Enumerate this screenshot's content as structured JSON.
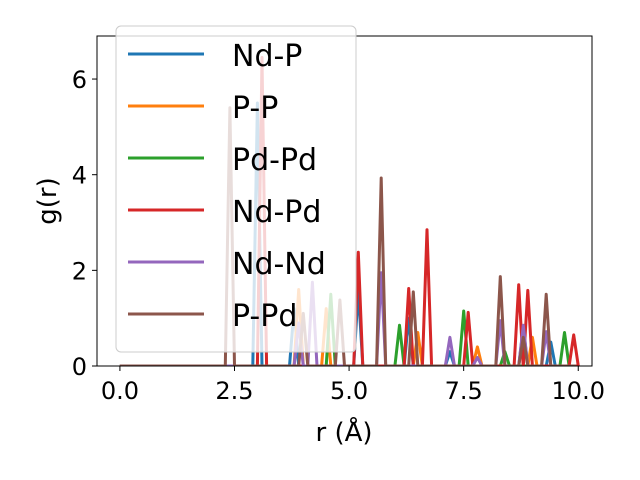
{
  "chart_data": {
    "type": "line",
    "xlabel": "r (Å)",
    "ylabel": "g(r)",
    "xlim": [
      -0.5,
      10.3
    ],
    "ylim": [
      0,
      6.9
    ],
    "xticks": [
      0.0,
      2.5,
      5.0,
      7.5,
      10.0
    ],
    "xtick_labels": [
      "0.0",
      "2.5",
      "5.0",
      "7.5",
      "10.0"
    ],
    "yticks": [
      0,
      2,
      4,
      6
    ],
    "ytick_labels": [
      "0",
      "2",
      "4",
      "6"
    ],
    "grid": false,
    "legend_position": "upper-left",
    "series": [
      {
        "name": "Nd-P",
        "color": "#1f77b4",
        "peaks": [
          [
            3.0,
            5.5
          ],
          [
            3.8,
            1.2
          ],
          [
            5.2,
            1.6
          ],
          [
            6.3,
            1.0
          ],
          [
            7.2,
            0.3
          ],
          [
            8.8,
            0.8
          ],
          [
            9.4,
            0.5
          ]
        ]
      },
      {
        "name": "P-P",
        "color": "#ff7f0e",
        "peaks": [
          [
            3.9,
            1.6
          ],
          [
            4.5,
            1.2
          ],
          [
            6.5,
            0.7
          ],
          [
            7.8,
            0.4
          ],
          [
            9.0,
            0.6
          ]
        ]
      },
      {
        "name": "Pd-Pd",
        "color": "#2ca02c",
        "peaks": [
          [
            4.6,
            1.5
          ],
          [
            6.1,
            0.85
          ],
          [
            7.5,
            1.15
          ],
          [
            8.4,
            0.3
          ],
          [
            9.7,
            0.7
          ]
        ]
      },
      {
        "name": "Nd-Pd",
        "color": "#d62728",
        "peaks": [
          [
            3.1,
            6.45
          ],
          [
            5.2,
            2.38
          ],
          [
            6.3,
            1.62
          ],
          [
            6.7,
            2.85
          ],
          [
            7.6,
            1.12
          ],
          [
            8.7,
            1.7
          ],
          [
            8.9,
            1.58
          ],
          [
            9.9,
            0.65
          ]
        ]
      },
      {
        "name": "Nd-Nd",
        "color": "#9467bd",
        "peaks": [
          [
            3.9,
            0.9
          ],
          [
            4.2,
            1.75
          ],
          [
            5.7,
            1.95
          ],
          [
            7.2,
            0.6
          ],
          [
            7.8,
            0.18
          ],
          [
            8.3,
            0.95
          ],
          [
            8.8,
            0.85
          ],
          [
            9.3,
            0.72
          ]
        ]
      },
      {
        "name": "P-Pd",
        "color": "#8c564b",
        "peaks": [
          [
            2.4,
            5.4
          ],
          [
            4.0,
            1.1
          ],
          [
            4.8,
            1.38
          ],
          [
            5.7,
            3.93
          ],
          [
            6.4,
            1.55
          ],
          [
            8.3,
            1.87
          ],
          [
            8.8,
            0.6
          ],
          [
            9.3,
            1.5
          ]
        ]
      }
    ]
  }
}
